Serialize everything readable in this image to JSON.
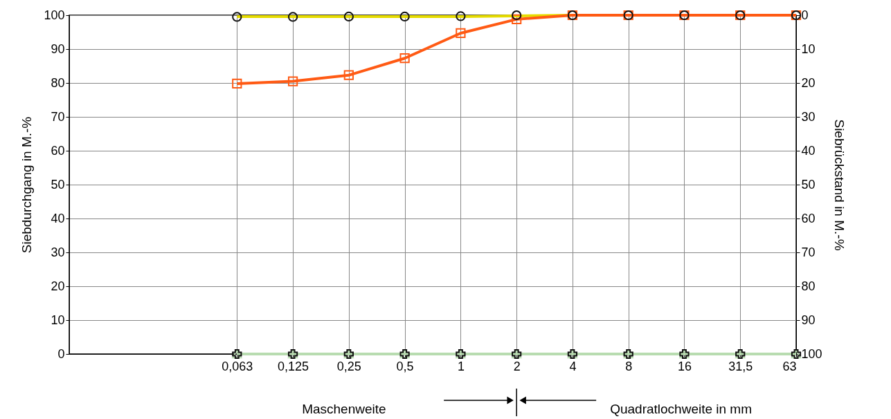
{
  "chart_data": {
    "type": "line",
    "categories": [
      null,
      null,
      null,
      "0,063",
      "0,125",
      "0,25",
      "0,5",
      "1",
      "2",
      "4",
      "8",
      "16",
      "31,5",
      "63"
    ],
    "series": [
      {
        "color": "#e6dc00",
        "marker": "none",
        "values": [
          null,
          null,
          null,
          99.6,
          99.6,
          99.6,
          99.6,
          99.6,
          99.8,
          100,
          100,
          null,
          null,
          null
        ]
      },
      {
        "color": "#ff5a14",
        "marker": "square",
        "values": [
          null,
          null,
          null,
          79.8,
          80.5,
          82.3,
          87.3,
          94.7,
          98.8,
          100,
          100,
          100,
          100,
          100
        ]
      },
      {
        "type": "scatter",
        "color": "#111111",
        "marker": "circle",
        "values": [
          null,
          null,
          null,
          99.5,
          99.5,
          99.6,
          99.6,
          99.7,
          100,
          100,
          100,
          100,
          100,
          100
        ]
      },
      {
        "color": "#b8dcb0",
        "marker": "triangle",
        "values": [
          null,
          null,
          null,
          0,
          0,
          0,
          0,
          0,
          0,
          0,
          0,
          0,
          0,
          0
        ]
      },
      {
        "type": "scatter",
        "color": "#111111",
        "marker": "cross",
        "values": [
          null,
          null,
          null,
          0,
          0,
          0,
          0,
          0,
          0,
          0,
          0,
          0,
          0,
          0
        ]
      }
    ],
    "ylabel": "Siebdurchgang in M.-%",
    "y2label": "Siebrückstand in M.-%",
    "ylim": [
      0,
      100
    ],
    "yticks": [
      0,
      10,
      20,
      30,
      40,
      50,
      60,
      70,
      80,
      90,
      100
    ],
    "y2lim": [
      100,
      0
    ],
    "y2ticks": [
      0,
      10,
      20,
      30,
      40,
      50,
      60,
      70,
      80,
      90,
      100
    ],
    "grid": true,
    "annotations": [
      "Maschenweite",
      "Quadratlochweite in mm"
    ]
  }
}
